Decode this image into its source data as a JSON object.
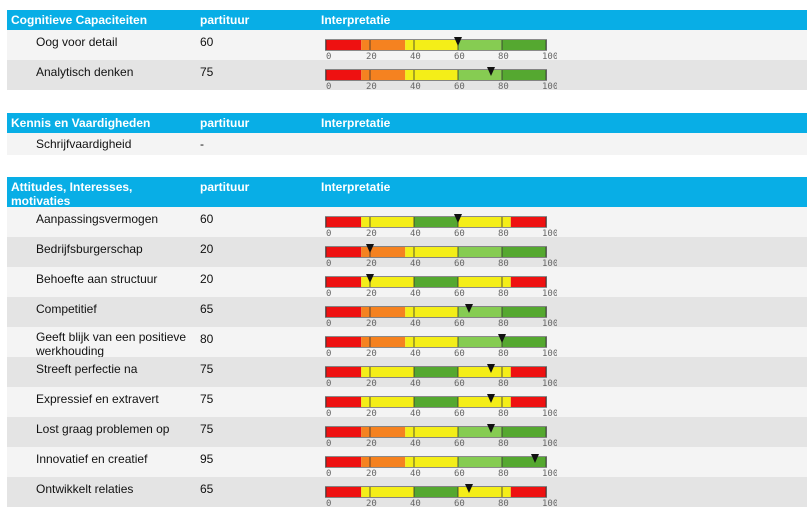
{
  "colors": {
    "header": "#08aee6",
    "red": "#ee1111",
    "orange": "#f58220",
    "yellow": "#f4ee18",
    "dark_green": "#55a830",
    "light_green": "#86cc52"
  },
  "scale_ticks": [
    "0",
    "20",
    "40",
    "60",
    "80",
    "100"
  ],
  "sections": [
    {
      "title": "Cognitieve Capaciteiten",
      "score_header": "partituur",
      "interp_header": "Interpretatie",
      "rows": [
        {
          "name": "Oog voor detail",
          "score": "60",
          "value": 60,
          "scheme": "increasing"
        },
        {
          "name": "Analytisch denken",
          "score": "75",
          "value": 75,
          "scheme": "increasing"
        }
      ]
    },
    {
      "title": "Kennis en Vaardigheden",
      "score_header": "partituur",
      "interp_header": "Interpretatie",
      "rows": [
        {
          "name": "Schrijfvaardigheid",
          "score": "-",
          "value": null,
          "scheme": null
        }
      ]
    },
    {
      "title": "Attitudes, Interesses, motivaties",
      "score_header": "partituur",
      "interp_header": "Interpretatie",
      "rows": [
        {
          "name": "Aanpassingsvermogen",
          "score": "60",
          "value": 60,
          "scheme": "middle"
        },
        {
          "name": "Bedrijfsburgerschap",
          "score": "20",
          "value": 20,
          "scheme": "increasing"
        },
        {
          "name": "Behoefte aan structuur",
          "score": "20",
          "value": 20,
          "scheme": "middle"
        },
        {
          "name": "Competitief",
          "score": "65",
          "value": 65,
          "scheme": "increasing"
        },
        {
          "name": "Geeft blijk van een positieve werkhouding",
          "score": "80",
          "value": 80,
          "scheme": "increasing"
        },
        {
          "name": "Streeft perfectie na",
          "score": "75",
          "value": 75,
          "scheme": "middle"
        },
        {
          "name": "Expressief en extravert",
          "score": "75",
          "value": 75,
          "scheme": "middle"
        },
        {
          "name": "Lost graag problemen op",
          "score": "75",
          "value": 75,
          "scheme": "increasing"
        },
        {
          "name": "Innovatief en creatief",
          "score": "95",
          "value": 95,
          "scheme": "increasing"
        },
        {
          "name": "Ontwikkelt relaties",
          "score": "65",
          "value": 65,
          "scheme": "middle"
        }
      ]
    }
  ]
}
